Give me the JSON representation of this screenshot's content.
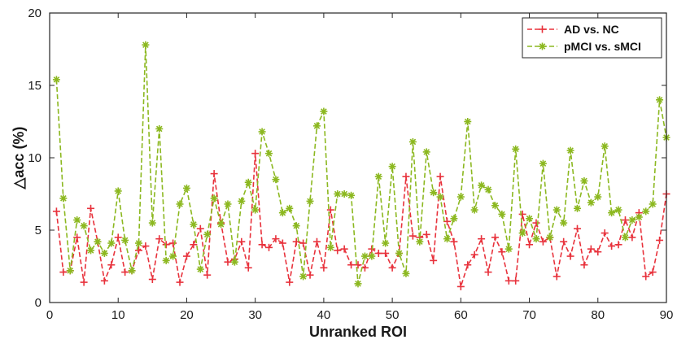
{
  "chart_data": {
    "type": "line",
    "title": "",
    "xlabel": "Unranked ROI",
    "ylabel": "△acc (%)",
    "xlim": [
      0,
      90
    ],
    "ylim": [
      0,
      20
    ],
    "xticks": [
      "0",
      "10",
      "20",
      "30",
      "40",
      "50",
      "60",
      "70",
      "80",
      "90"
    ],
    "yticks": [
      "0",
      "5",
      "10",
      "15",
      "20"
    ],
    "grid": false,
    "legend_position": "top-right",
    "series": [
      {
        "name": "AD vs. NC",
        "color": "#e8323c",
        "marker": "plus",
        "line_style": "dashed",
        "x": [
          1,
          2,
          3,
          4,
          5,
          6,
          7,
          8,
          9,
          10,
          11,
          12,
          13,
          14,
          15,
          16,
          17,
          18,
          19,
          20,
          21,
          22,
          23,
          24,
          25,
          26,
          27,
          28,
          29,
          30,
          31,
          32,
          33,
          34,
          35,
          36,
          37,
          38,
          39,
          40,
          41,
          42,
          43,
          44,
          45,
          46,
          47,
          48,
          49,
          50,
          51,
          52,
          53,
          54,
          55,
          56,
          57,
          58,
          59,
          60,
          61,
          62,
          63,
          64,
          65,
          66,
          67,
          68,
          69,
          70,
          71,
          72,
          73,
          74,
          75,
          76,
          77,
          78,
          79,
          80,
          81,
          82,
          83,
          84,
          85,
          86,
          87,
          88,
          89,
          90
        ],
        "values": [
          6.3,
          2.1,
          2.2,
          4.5,
          1.4,
          6.5,
          4.2,
          1.5,
          2.6,
          4.5,
          2.1,
          2.2,
          3.6,
          3.9,
          1.6,
          4.4,
          4.0,
          4.1,
          1.4,
          3.2,
          4.0,
          5.1,
          1.9,
          8.9,
          5.5,
          2.8,
          3.0,
          4.2,
          2.4,
          10.3,
          4.0,
          3.8,
          4.4,
          4.1,
          1.4,
          4.2,
          4.1,
          1.9,
          4.2,
          2.4,
          6.4,
          3.6,
          3.7,
          2.6,
          2.6,
          2.4,
          3.7,
          3.4,
          3.4,
          2.4,
          3.4,
          8.7,
          4.6,
          4.5,
          4.7,
          2.9,
          8.7,
          5.6,
          4.2,
          1.1,
          2.6,
          3.3,
          4.4,
          2.1,
          4.5,
          3.5,
          1.5,
          1.5,
          6.1,
          4.0,
          5.5,
          4.2,
          4.5,
          1.8,
          4.2,
          3.2,
          5.1,
          2.6,
          3.7,
          3.5,
          4.8,
          3.9,
          4.0,
          5.7,
          4.5,
          6.2,
          1.8,
          2.1,
          4.3,
          7.5
        ]
      },
      {
        "name": "pMCI vs. sMCI",
        "color": "#8cb820",
        "marker": "asterisk",
        "line_style": "dashed",
        "x": [
          1,
          2,
          3,
          4,
          5,
          6,
          7,
          8,
          9,
          10,
          11,
          12,
          13,
          14,
          15,
          16,
          17,
          18,
          19,
          20,
          21,
          22,
          23,
          24,
          25,
          26,
          27,
          28,
          29,
          30,
          31,
          32,
          33,
          34,
          35,
          36,
          37,
          38,
          39,
          40,
          41,
          42,
          43,
          44,
          45,
          46,
          47,
          48,
          49,
          50,
          51,
          52,
          53,
          54,
          55,
          56,
          57,
          58,
          59,
          60,
          61,
          62,
          63,
          64,
          65,
          66,
          67,
          68,
          69,
          70,
          71,
          72,
          73,
          74,
          75,
          76,
          77,
          78,
          79,
          80,
          81,
          82,
          83,
          84,
          85,
          86,
          87,
          88,
          89,
          90
        ],
        "values": [
          15.4,
          7.2,
          2.2,
          5.7,
          5.3,
          3.6,
          4.2,
          3.4,
          4.1,
          7.7,
          4.3,
          2.2,
          4.1,
          17.8,
          5.5,
          12.0,
          2.9,
          3.2,
          6.8,
          7.9,
          5.4,
          2.3,
          4.7,
          7.2,
          5.4,
          6.8,
          2.8,
          7.0,
          8.3,
          6.4,
          11.8,
          10.3,
          8.5,
          6.2,
          6.5,
          5.3,
          1.8,
          7.0,
          12.2,
          13.2,
          3.8,
          7.5,
          7.5,
          7.4,
          1.3,
          3.2,
          3.2,
          8.7,
          4.1,
          9.4,
          3.4,
          2.0,
          11.1,
          4.2,
          10.4,
          7.6,
          7.3,
          4.4,
          5.8,
          7.3,
          12.5,
          6.4,
          8.1,
          7.8,
          6.7,
          6.1,
          3.7,
          10.6,
          4.8,
          5.8,
          4.4,
          9.6,
          4.5,
          6.4,
          5.5,
          10.5,
          6.5,
          8.4,
          6.9,
          7.3,
          10.8,
          6.2,
          6.4,
          4.5,
          5.7,
          5.9,
          6.3,
          6.8,
          14.0,
          11.4
        ]
      }
    ]
  }
}
